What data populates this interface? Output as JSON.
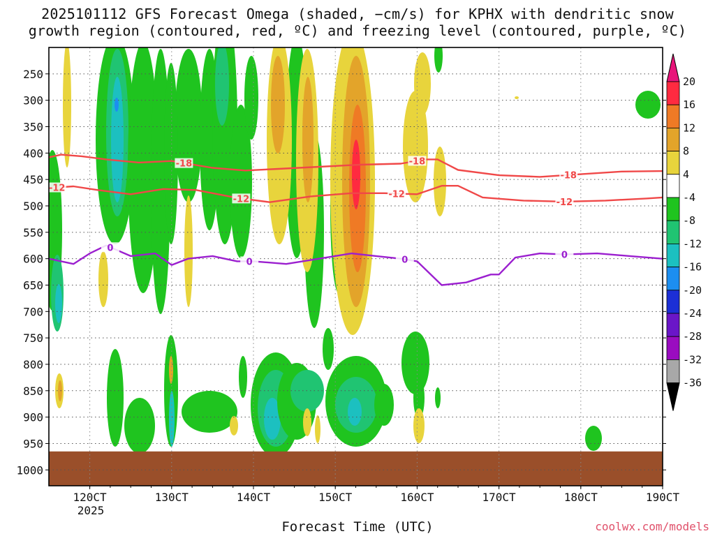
{
  "title_line1": "2025101112 GFS Forecast Omega (shaded, −cm/s) for KPHX with dendritic snow",
  "title_line2": "growth region (contoured, red, ºC) and freezing level (contoured, purple, ºC)",
  "xlabel": "Forecast Time (UTC)",
  "credit": "coolwx.com/models",
  "colors": {
    "ground": "#9a4f2a",
    "snow_contour": "#f04848",
    "freezing_contour": "#9b1fcf"
  },
  "chart_data": {
    "type": "heatmap",
    "title": "2025101112 GFS Forecast Omega (shaded, −cm/s) for KPHX with dendritic snow growth region (contoured, red, ºC) and freezing level (contoured, purple, ºC)",
    "xlabel": "Forecast Time (UTC)",
    "ylabel": "",
    "x_ticks": [
      "120CT",
      "130CT",
      "140CT",
      "150CT",
      "160CT",
      "170CT",
      "180CT",
      "190CT"
    ],
    "x_year": "2025",
    "x_range_days": [
      11.5,
      19.0
    ],
    "y_ticks": [
      250,
      300,
      350,
      400,
      450,
      500,
      550,
      600,
      650,
      700,
      750,
      800,
      850,
      900,
      950,
      1000
    ],
    "y_range_hpa": [
      200,
      1030
    ],
    "ground_level_hpa": 965,
    "colorbar": {
      "labels": [
        20,
        16,
        12,
        8,
        4,
        -4,
        -8,
        -12,
        -16,
        -20,
        -24,
        -28,
        -32,
        -36
      ],
      "colors": [
        "#ff2a40",
        "#ef7a25",
        "#e3a42a",
        "#e8d43c",
        "#ffffff",
        "#1fc41f",
        "#20c472",
        "#1cc0c0",
        "#1c8ef0",
        "#1c2fd6",
        "#6a16c8",
        "#9a0cc0",
        "#a8a8a8"
      ],
      "top_arrow": "#e8157a",
      "bottom_arrow": "#000000"
    },
    "series": [
      {
        "name": "-18 ºC (dendritic growth, red)",
        "label": "-18",
        "color": "#f04848",
        "x_days": [
          11.5,
          11.65,
          11.9,
          12.2,
          12.6,
          13.0,
          13.5,
          13.9,
          14.3,
          14.8,
          15.3,
          15.8,
          16.1,
          16.25,
          16.5,
          17.0,
          17.5,
          18.0,
          18.5,
          19.0
        ],
        "y_hpa": [
          408,
          403,
          406,
          412,
          418,
          415,
          428,
          433,
          430,
          426,
          422,
          420,
          412,
          412,
          432,
          442,
          445,
          440,
          435,
          434
        ],
        "label_positions_days": [
          13.15,
          16.0,
          17.85
        ]
      },
      {
        "name": "-12 ºC (dendritic growth, red)",
        "label": "-12",
        "color": "#f04848",
        "x_days": [
          11.5,
          11.8,
          12.1,
          12.5,
          12.9,
          13.3,
          13.8,
          14.2,
          14.7,
          15.2,
          15.6,
          16.0,
          16.3,
          16.5,
          16.8,
          17.3,
          17.8,
          18.3,
          18.8,
          19.0
        ],
        "y_hpa": [
          466,
          463,
          470,
          478,
          468,
          470,
          485,
          493,
          482,
          476,
          476,
          478,
          462,
          462,
          484,
          490,
          492,
          490,
          486,
          484
        ],
        "label_positions_days": [
          11.6,
          13.85,
          15.75,
          17.8
        ]
      },
      {
        "name": "0 ºC (freezing level, purple)",
        "label": "0",
        "color": "#9b1fcf",
        "x_days": [
          11.5,
          11.8,
          12.0,
          12.2,
          12.5,
          12.8,
          13.0,
          13.2,
          13.5,
          13.8,
          14.0,
          14.4,
          14.8,
          15.2,
          15.5,
          15.8,
          16.0,
          16.3,
          16.6,
          16.9,
          17.0,
          17.2,
          17.5,
          17.8,
          18.2,
          18.6,
          19.0
        ],
        "y_hpa": [
          600,
          610,
          590,
          575,
          595,
          590,
          612,
          600,
          595,
          605,
          605,
          610,
          600,
          590,
          595,
          600,
          605,
          650,
          645,
          630,
          630,
          598,
          590,
          592,
          590,
          595,
          600
        ],
        "label_positions_days": [
          12.25,
          13.95,
          15.85,
          17.8
        ]
      }
    ]
  }
}
